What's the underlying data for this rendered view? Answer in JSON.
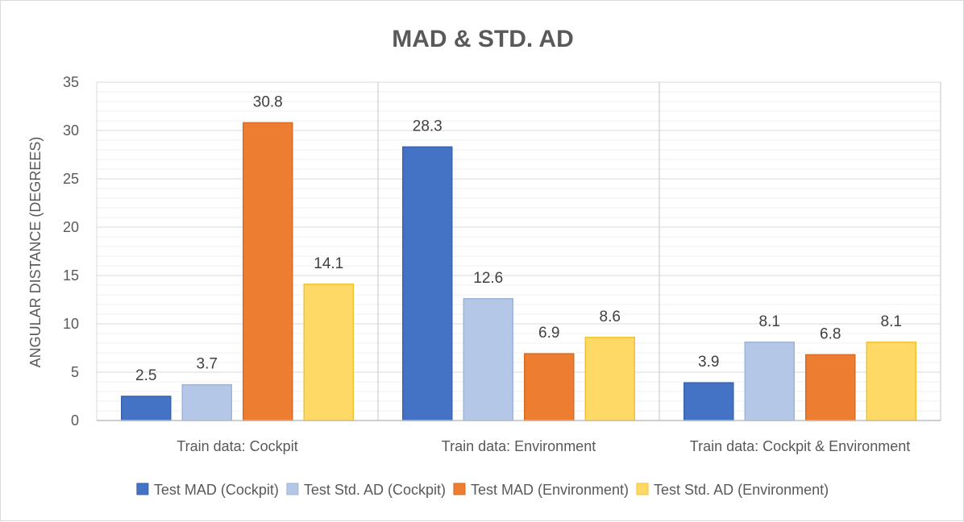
{
  "chart_data": {
    "type": "bar",
    "title": "MAD & STD. AD",
    "xlabel": "",
    "ylabel": "ANGULAR DISTANCE (DEGREES)",
    "ylim": [
      0,
      35
    ],
    "major_tick_step": 5,
    "minor_tick_step": 1,
    "grid": true,
    "legend_position": "bottom",
    "categories": [
      "Train data: Cockpit",
      "Train data: Environment",
      "Train data: Cockpit & Environment"
    ],
    "series": [
      {
        "name": "Test MAD (Cockpit)",
        "color": "#4472C4",
        "border": "#3A63AD",
        "values": [
          2.5,
          28.3,
          3.9
        ]
      },
      {
        "name": "Test Std. AD (Cockpit)",
        "color": "#B4C7E7",
        "border": "#9DB3DA",
        "values": [
          3.7,
          12.6,
          8.1
        ]
      },
      {
        "name": "Test MAD (Environment)",
        "color": "#ED7D31",
        "border": "#D66B23",
        "values": [
          30.8,
          6.9,
          6.8
        ]
      },
      {
        "name": "Test Std. AD (Environment)",
        "color": "#FFD966",
        "border": "#F2C330",
        "values": [
          14.1,
          8.6,
          8.1
        ]
      }
    ]
  }
}
